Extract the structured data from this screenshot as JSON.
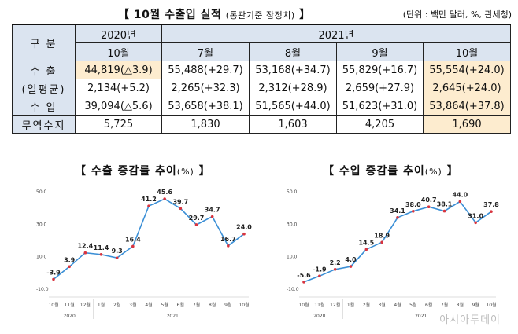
{
  "header": {
    "title": "【 10월 수출입 실적",
    "title_sub": "(통관기준 잠정치)",
    "title_end": "】",
    "unit": "(단위 : 백만 달러, %, 관세청)"
  },
  "table": {
    "corner": "구 분",
    "year_2020": "2020년",
    "year_2021": "2021년",
    "months": [
      "10월",
      "7월",
      "8월",
      "9월",
      "10월"
    ],
    "rows": [
      {
        "label": "수 출",
        "cells": [
          "44,819(△3.9)",
          "55,488(+29.7)",
          "53,168(+34.7)",
          "55,829(+16.7)",
          "55,554(+24.0)"
        ]
      },
      {
        "label": "(일평균)",
        "cells": [
          "2,134(+5.2)",
          "2,265(+32.3)",
          "2,312(+28.9)",
          "2,659(+27.9)",
          "2,645(+24.0)"
        ]
      },
      {
        "label": "수 입",
        "cells": [
          "39,094(△5.6)",
          "53,658(+38.1)",
          "51,565(+44.0)",
          "51,623(+31.0)",
          "53,864(+37.8)"
        ]
      },
      {
        "label": "무역수지",
        "cells": [
          "5,725",
          "1,830",
          "1,603",
          "4,205",
          "1,690"
        ]
      }
    ]
  },
  "chart_data": [
    {
      "type": "line",
      "title": "【 수출 증감률 추이",
      "title_unit": "(%)",
      "title_end": "】",
      "x": [
        "10월",
        "11월",
        "12월",
        "1월",
        "2월",
        "3월",
        "4월",
        "5월",
        "6월",
        "7월",
        "8월",
        "9월",
        "10월"
      ],
      "x_groups": [
        {
          "label": "2020",
          "span": 3
        },
        {
          "label": "2021",
          "span": 10
        }
      ],
      "y": [
        -3.9,
        3.9,
        12.4,
        11.4,
        9.3,
        16.4,
        41.2,
        45.6,
        39.7,
        29.7,
        34.7,
        16.7,
        24.0
      ],
      "data_labels": [
        "-3.9",
        "3.9",
        "12.4",
        "11.4",
        "9.3",
        "16.4",
        "41.2",
        "45.6",
        "39.7",
        "29.7",
        "34.7",
        "16.7",
        "24.0"
      ],
      "yticks": [
        "50.0",
        "30.0",
        "10.0",
        "-10.0"
      ],
      "ylim": [
        -10,
        50
      ],
      "line_color": "#3b8fd6",
      "marker_color": "#d8343f"
    },
    {
      "type": "line",
      "title": "【 수입 증감률 추이",
      "title_unit": "(%)",
      "title_end": "】",
      "x": [
        "10월",
        "11월",
        "12월",
        "1월",
        "2월",
        "3월",
        "4월",
        "5월",
        "6월",
        "7월",
        "8월",
        "9월",
        "10월"
      ],
      "x_groups": [
        {
          "label": "2020",
          "span": 3
        },
        {
          "label": "2021",
          "span": 10
        }
      ],
      "y": [
        -5.6,
        -1.9,
        2.2,
        4.0,
        14.5,
        18.9,
        34.1,
        38.0,
        40.7,
        38.1,
        44.0,
        31.0,
        37.8
      ],
      "data_labels": [
        "-5.6",
        "-1.9",
        "2.2",
        "4.0",
        "14.5",
        "18.9",
        "34.1",
        "38.0",
        "40.7",
        "38.1",
        "44.0",
        "31.0",
        "37.8"
      ],
      "yticks": [
        "50.0",
        "30.0",
        "10.0",
        "-10.0"
      ],
      "ylim": [
        -10,
        50
      ],
      "line_color": "#3b8fd6",
      "marker_color": "#d8343f"
    }
  ],
  "watermark": "아시아투데이"
}
